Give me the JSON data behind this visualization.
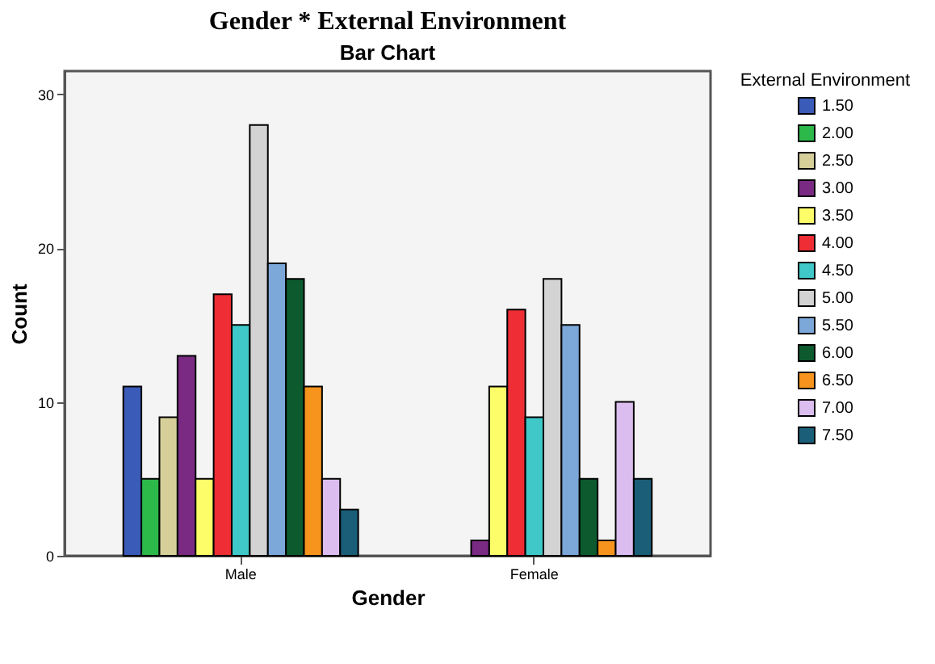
{
  "chart_data": {
    "type": "bar",
    "title": "Gender * External Environment",
    "subtitle": "Bar Chart",
    "xlabel": "Gender",
    "ylabel": "Count",
    "legend_title": "External Environment",
    "categories": [
      "Male",
      "Female"
    ],
    "series": [
      {
        "name": "1.50",
        "color": "#3b5bb8",
        "values": [
          11,
          null
        ]
      },
      {
        "name": "2.00",
        "color": "#2db84a",
        "values": [
          5,
          null
        ]
      },
      {
        "name": "2.50",
        "color": "#d6cf9a",
        "values": [
          9,
          null
        ]
      },
      {
        "name": "3.00",
        "color": "#7a2a82",
        "values": [
          13,
          1
        ]
      },
      {
        "name": "3.50",
        "color": "#fdfd6a",
        "values": [
          5,
          11
        ]
      },
      {
        "name": "4.00",
        "color": "#ee2d35",
        "values": [
          17,
          16
        ]
      },
      {
        "name": "4.50",
        "color": "#40c8c8",
        "values": [
          15,
          9
        ]
      },
      {
        "name": "5.00",
        "color": "#d3d3d3",
        "values": [
          28,
          18
        ]
      },
      {
        "name": "5.50",
        "color": "#7ba7d9",
        "values": [
          19,
          15
        ]
      },
      {
        "name": "6.00",
        "color": "#0c5a2e",
        "values": [
          18,
          5
        ]
      },
      {
        "name": "6.50",
        "color": "#f7941d",
        "values": [
          11,
          1
        ]
      },
      {
        "name": "7.00",
        "color": "#dcbdf0",
        "values": [
          5,
          10
        ]
      },
      {
        "name": "7.50",
        "color": "#1a5e78",
        "values": [
          3,
          5
        ]
      }
    ],
    "ylim": [
      0,
      31.5
    ],
    "yticks": [
      0,
      10,
      20,
      30
    ],
    "grid": false,
    "legend": "right"
  }
}
